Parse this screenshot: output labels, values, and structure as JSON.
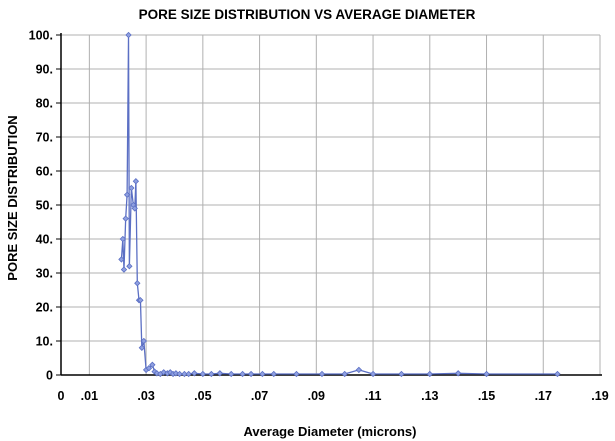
{
  "chart_data": {
    "type": "line",
    "title": "PORE SIZE DISTRIBUTION VS AVERAGE DIAMETER",
    "xlabel": "Average Diameter (microns)",
    "ylabel": "PORE SIZE DISTRIBUTION",
    "xlim": [
      0,
      0.19
    ],
    "ylim": [
      0,
      100
    ],
    "x_ticks": [
      0,
      0.01,
      0.03,
      0.05,
      0.07,
      0.09,
      0.11,
      0.13,
      0.15,
      0.17,
      0.19
    ],
    "x_tick_labels": [
      "0",
      ".01",
      ".03",
      ".05",
      ".07",
      ".09",
      ".11",
      ".13",
      ".15",
      ".17",
      ".19"
    ],
    "y_ticks": [
      0,
      10,
      20,
      30,
      40,
      50,
      60,
      70,
      80,
      90,
      100
    ],
    "y_tick_labels": [
      "0",
      "10.",
      "20.",
      "30.",
      "40.",
      "50.",
      "60.",
      "70.",
      "80.",
      "90.",
      "100."
    ],
    "grid": true,
    "colors": {
      "series": "#5b6fc4",
      "grid": "#b0b0b0",
      "axis": "#000000"
    },
    "series": [
      {
        "x": [
          0.0213,
          0.0218,
          0.0222,
          0.0228,
          0.0233,
          0.0238,
          0.0241,
          0.0248,
          0.0255,
          0.026,
          0.0264,
          0.0269,
          0.0275,
          0.028,
          0.0285,
          0.0292,
          0.03,
          0.031,
          0.0322,
          0.033,
          0.0338,
          0.035,
          0.0362,
          0.0375,
          0.0385,
          0.0395,
          0.0405,
          0.0418,
          0.0435,
          0.045,
          0.047,
          0.05,
          0.053,
          0.056,
          0.06,
          0.064,
          0.067,
          0.071,
          0.075,
          0.083,
          0.092,
          0.1,
          0.105,
          0.11,
          0.12,
          0.13,
          0.14,
          0.15,
          0.175
        ],
        "y": [
          34,
          40,
          31,
          46,
          53,
          100,
          32,
          55,
          50,
          49,
          57,
          27,
          22,
          22,
          8,
          10,
          1.5,
          2,
          3,
          1,
          0.5,
          0.3,
          0.8,
          0.5,
          0.8,
          0.3,
          0.5,
          0.3,
          0.3,
          0.3,
          0.5,
          0.3,
          0.3,
          0.5,
          0.3,
          0.3,
          0.3,
          0.3,
          0.3,
          0.3,
          0.3,
          0.3,
          1.5,
          0.3,
          0.3,
          0.3,
          0.5,
          0.3,
          0.3
        ]
      }
    ]
  }
}
